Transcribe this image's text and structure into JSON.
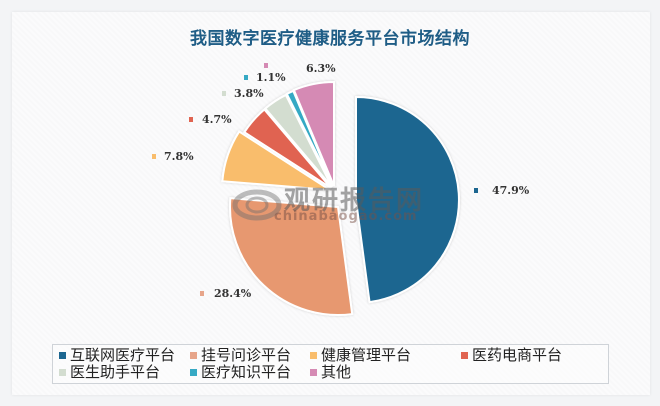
{
  "chart_data": {
    "type": "pie",
    "title": "我国数字医疗健康服务平台市场结构",
    "categories": [
      "互联网医疗平台",
      "挂号问诊平台",
      "健康管理平台",
      "医药电商平台",
      "医生助手平台",
      "医疗知识平台",
      "其他"
    ],
    "values": [
      47.9,
      28.4,
      7.8,
      4.7,
      3.8,
      1.1,
      6.3
    ],
    "unit": "%",
    "labels": [
      "47.9%",
      "28.4%",
      "7.8%",
      "4.7%",
      "3.8%",
      "1.1%",
      "6.3%"
    ],
    "colors": [
      "#1c6690",
      "#e7986f",
      "#f9bd6c",
      "#e06451",
      "#d3ddd0",
      "#36a9c4",
      "#d58ab4"
    ],
    "exploded": true,
    "start_angle": "12 o'clock, clockwise",
    "legend_position": "bottom"
  },
  "title": "我国数字医疗健康服务平台市场结构",
  "watermark": {
    "cn": "观研报告网",
    "en": "chinabaogao.com"
  },
  "legend": {
    "items": [
      {
        "label": "互联网医疗平台",
        "color": "#1c6690"
      },
      {
        "label": "挂号问诊平台",
        "color": "#e7986f"
      },
      {
        "label": "健康管理平台",
        "color": "#f9bd6c"
      },
      {
        "label": "医药电商平台",
        "color": "#e06451"
      },
      {
        "label": "医生助手平台",
        "color": "#d3ddd0"
      },
      {
        "label": "医疗知识平台",
        "color": "#36a9c4"
      },
      {
        "label": "其他",
        "color": "#d58ab4"
      }
    ]
  },
  "data_labels": [
    "47.9%",
    "28.4%",
    "7.8%",
    "4.7%",
    "3.8%",
    "1.1%",
    "6.3%"
  ]
}
